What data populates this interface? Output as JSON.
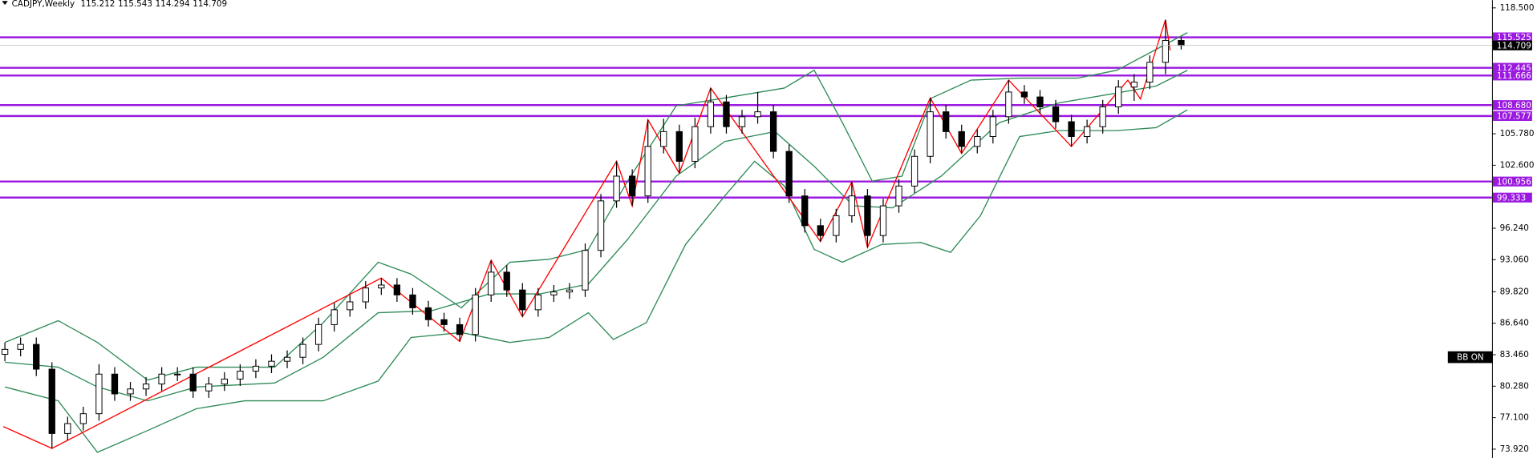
{
  "chart_data": {
    "type": "candlestick",
    "symbol": "CADJPY,Weekly",
    "badge": "BB ON",
    "ylim": [
      73.03,
      119.29
    ],
    "yticks": [
      {
        "value": 118.5,
        "label": "118.500"
      },
      {
        "value": 105.78,
        "label": "105.780"
      },
      {
        "value": 102.6,
        "label": "102.600"
      },
      {
        "value": 96.24,
        "label": "96.240"
      },
      {
        "value": 93.06,
        "label": "93.060"
      },
      {
        "value": 89.82,
        "label": "89.820"
      },
      {
        "value": 86.64,
        "label": "86.640"
      },
      {
        "value": 83.46,
        "label": "83.460"
      },
      {
        "value": 80.28,
        "label": "80.280"
      },
      {
        "value": 77.1,
        "label": "77.100"
      },
      {
        "value": 73.92,
        "label": "73.920"
      }
    ],
    "levels": [
      115.525,
      112.445,
      111.666,
      {
        "value": 108.68,
        "label": "108.680"
      },
      107.577,
      100.956,
      99.333
    ],
    "level_color": "#9b19e0",
    "up_color": "#ffffff",
    "down_color": "#000000",
    "open": [
      83.5,
      84.0,
      84.5,
      82.0,
      75.5,
      76.5,
      77.5,
      81.5,
      79.5,
      80.0,
      80.5,
      81.5,
      81.5,
      79.8,
      80.5,
      81.0,
      81.8,
      82.3,
      82.8,
      83.2,
      84.5,
      86.5,
      88.0,
      88.8,
      90.2,
      90.5,
      89.5,
      88.2,
      87.0,
      86.5,
      85.5,
      89.5,
      91.8,
      90.0,
      88.0,
      89.5,
      89.8,
      90.0,
      94.0,
      99.0,
      101.5,
      99.5,
      104.5,
      106.0,
      103.0,
      106.5,
      109.0,
      106.5,
      107.5,
      108.0,
      104.0,
      99.5,
      96.5,
      95.5,
      97.5,
      99.5,
      95.5,
      98.5,
      100.5,
      103.5,
      108.0,
      106.0,
      104.5,
      105.5,
      107.5,
      110.0,
      109.5,
      108.5,
      107.0,
      105.5,
      106.5,
      108.5,
      110.5,
      111.0,
      113.0,
      115.212
    ],
    "high": [
      84.7,
      85.2,
      85.2,
      82.7,
      77.2,
      78.2,
      82.5,
      82.2,
      80.7,
      81.2,
      82.2,
      82.2,
      82.2,
      81.2,
      81.7,
      82.5,
      83.0,
      83.5,
      83.9,
      85.2,
      87.2,
      88.7,
      89.5,
      90.9,
      91.2,
      91.2,
      90.2,
      88.9,
      87.7,
      87.2,
      90.2,
      93.0,
      92.5,
      90.7,
      90.2,
      90.5,
      90.7,
      94.7,
      99.7,
      103.0,
      102.2,
      107.2,
      107.3,
      106.7,
      107.4,
      110.4,
      109.7,
      108.2,
      110.0,
      108.7,
      104.7,
      100.2,
      97.2,
      98.2,
      100.9,
      100.2,
      99.2,
      101.2,
      104.2,
      109.4,
      108.7,
      106.7,
      106.2,
      108.2,
      111.2,
      110.7,
      110.2,
      109.2,
      107.7,
      107.2,
      109.2,
      111.2,
      111.8,
      113.7,
      117.3,
      115.543
    ],
    "low": [
      82.8,
      83.3,
      81.3,
      74.0,
      74.8,
      75.8,
      76.8,
      78.8,
      78.8,
      79.3,
      79.8,
      80.8,
      79.1,
      79.1,
      79.8,
      80.3,
      81.1,
      81.6,
      82.1,
      82.5,
      83.8,
      85.8,
      87.3,
      88.1,
      89.5,
      88.8,
      87.5,
      86.3,
      85.8,
      84.8,
      84.8,
      88.8,
      89.3,
      87.3,
      87.3,
      88.8,
      89.1,
      89.3,
      93.3,
      98.3,
      98.5,
      98.8,
      103.8,
      101.8,
      102.3,
      105.8,
      105.8,
      105.8,
      106.8,
      103.3,
      98.8,
      95.8,
      94.9,
      94.8,
      96.8,
      94.3,
      94.8,
      97.8,
      99.8,
      102.8,
      105.3,
      103.8,
      103.8,
      104.8,
      106.8,
      108.8,
      107.8,
      106.3,
      104.5,
      104.8,
      105.8,
      107.8,
      109.1,
      110.3,
      111.8,
      114.294
    ],
    "close": [
      84.0,
      84.5,
      82.0,
      75.5,
      76.5,
      77.5,
      81.5,
      79.5,
      80.0,
      80.5,
      81.5,
      81.5,
      79.8,
      80.5,
      81.0,
      81.8,
      82.3,
      82.8,
      83.2,
      84.5,
      86.5,
      88.0,
      88.8,
      90.2,
      90.5,
      89.5,
      88.2,
      87.0,
      86.5,
      85.5,
      89.5,
      91.8,
      90.0,
      88.0,
      89.5,
      89.8,
      90.0,
      94.0,
      99.0,
      101.5,
      99.5,
      104.5,
      106.0,
      103.0,
      106.5,
      109.0,
      106.5,
      107.5,
      108.0,
      104.0,
      99.5,
      96.5,
      95.5,
      97.5,
      99.5,
      95.5,
      98.5,
      100.5,
      103.5,
      108.0,
      106.0,
      104.5,
      105.5,
      107.5,
      110.0,
      109.5,
      108.5,
      107.0,
      105.5,
      106.5,
      108.5,
      110.5,
      111.0,
      113.0,
      115.212,
      114.709
    ],
    "overlays": [
      {
        "color": "#2e8b57",
        "x": [
          0,
          3.4,
          5.9,
          9.1,
          12.2,
          17.2,
          20.3,
          23.8,
          25.9,
          29.1,
          32.2,
          34.7,
          37.2,
          39.7,
          42.8,
          45.9,
          49.7,
          51.6,
          53.4,
          55.3,
          57.2,
          59.1,
          61.6,
          64.7,
          68.4,
          70.9,
          73.4,
          75.4
        ],
        "values": [
          84.7,
          86.9,
          84.7,
          80.9,
          82.2,
          82.2,
          86.7,
          92.8,
          91.6,
          88.2,
          92.8,
          93.1,
          94.1,
          101.0,
          108.6,
          109.4,
          110.4,
          112.2,
          106.9,
          101.0,
          101.5,
          109.4,
          111.2,
          111.4,
          111.4,
          112.2,
          114.3,
          116.0
        ]
      },
      {
        "color": "#2e8b57",
        "x": [
          0,
          3.4,
          5.9,
          9.1,
          12.2,
          17.2,
          20.3,
          23.8,
          27.2,
          30.9,
          34.1,
          37.2,
          39.7,
          42.8,
          45.9,
          49.1,
          51.6,
          54.1,
          56.6,
          59.7,
          63.4,
          67.2,
          70.9,
          73.4,
          75.4
        ],
        "values": [
          82.7,
          82.2,
          80.2,
          78.8,
          80.2,
          80.6,
          83.2,
          87.7,
          87.9,
          89.6,
          89.6,
          90.6,
          95.1,
          101.5,
          105.0,
          106.0,
          102.5,
          98.5,
          98.3,
          101.5,
          106.9,
          108.9,
          109.9,
          110.6,
          112.2
        ]
      },
      {
        "color": "#2e8b57",
        "x": [
          0,
          3.4,
          5.9,
          9.1,
          12.2,
          15.3,
          20.3,
          23.8,
          25.9,
          29.1,
          32.2,
          34.7,
          37.2,
          38.8,
          40.9,
          43.4,
          45.9,
          47.8,
          49.7,
          51.6,
          53.4,
          55.9,
          58.4,
          60.3,
          62.2,
          64.7,
          67.2,
          70.9,
          73.4,
          75.4
        ],
        "values": [
          80.2,
          78.8,
          73.6,
          75.8,
          78.0,
          78.8,
          78.8,
          80.8,
          85.2,
          85.7,
          84.7,
          85.2,
          87.7,
          85.0,
          86.7,
          94.6,
          99.5,
          103.0,
          100.5,
          94.1,
          92.8,
          94.6,
          94.8,
          93.8,
          97.5,
          105.5,
          106.1,
          106.1,
          106.4,
          108.2
        ]
      },
      {
        "color": "#ff0000",
        "x": [
          -0.1,
          3,
          24,
          29,
          31,
          33,
          39,
          40,
          41,
          43,
          45,
          52,
          54,
          55,
          59,
          61,
          64,
          68,
          71.6,
          72.4,
          74,
          74.3
        ],
        "values": [
          76.2,
          74.0,
          91.2,
          84.8,
          93.0,
          87.3,
          103.0,
          98.5,
          107.2,
          101.8,
          110.4,
          94.9,
          100.9,
          94.3,
          109.4,
          103.8,
          111.2,
          104.5,
          111.2,
          109.3,
          117.3,
          114.2
        ]
      }
    ]
  }
}
